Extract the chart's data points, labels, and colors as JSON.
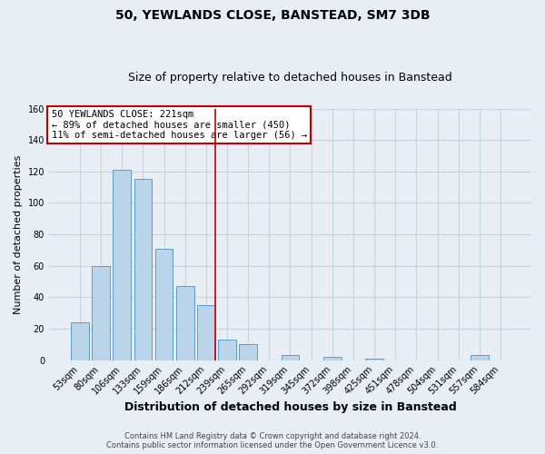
{
  "title": "50, YEWLANDS CLOSE, BANSTEAD, SM7 3DB",
  "subtitle": "Size of property relative to detached houses in Banstead",
  "xlabel": "Distribution of detached houses by size in Banstead",
  "ylabel": "Number of detached properties",
  "bar_labels": [
    "53sqm",
    "80sqm",
    "106sqm",
    "133sqm",
    "159sqm",
    "186sqm",
    "212sqm",
    "239sqm",
    "265sqm",
    "292sqm",
    "319sqm",
    "345sqm",
    "372sqm",
    "398sqm",
    "425sqm",
    "451sqm",
    "478sqm",
    "504sqm",
    "531sqm",
    "557sqm",
    "584sqm"
  ],
  "bar_values": [
    24,
    60,
    121,
    115,
    71,
    47,
    35,
    13,
    10,
    0,
    3,
    0,
    2,
    0,
    1,
    0,
    0,
    0,
    0,
    3,
    0
  ],
  "bar_color": "#bad4ea",
  "bar_edge_color": "#5b9bd5",
  "ylim": [
    0,
    160
  ],
  "yticks": [
    0,
    20,
    40,
    60,
    80,
    100,
    120,
    140,
    160
  ],
  "vline_x_index": 6.42,
  "vline_color": "#c00000",
  "annotation_title": "50 YEWLANDS CLOSE: 221sqm",
  "annotation_line1": "← 89% of detached houses are smaller (450)",
  "annotation_line2": "11% of semi-detached houses are larger (56) →",
  "annotation_box_facecolor": "#ffffff",
  "annotation_box_edgecolor": "#c00000",
  "footer_line1": "Contains HM Land Registry data © Crown copyright and database right 2024.",
  "footer_line2": "Contains public sector information licensed under the Open Government Licence v3.0.",
  "fig_facecolor": "#e8eef4",
  "plot_facecolor": "#e8eef4",
  "grid_color": "#c8d4de",
  "title_fontsize": 10,
  "subtitle_fontsize": 9,
  "xlabel_fontsize": 9,
  "ylabel_fontsize": 8,
  "tick_fontsize": 7,
  "annot_fontsize": 7.5,
  "footer_fontsize": 6
}
